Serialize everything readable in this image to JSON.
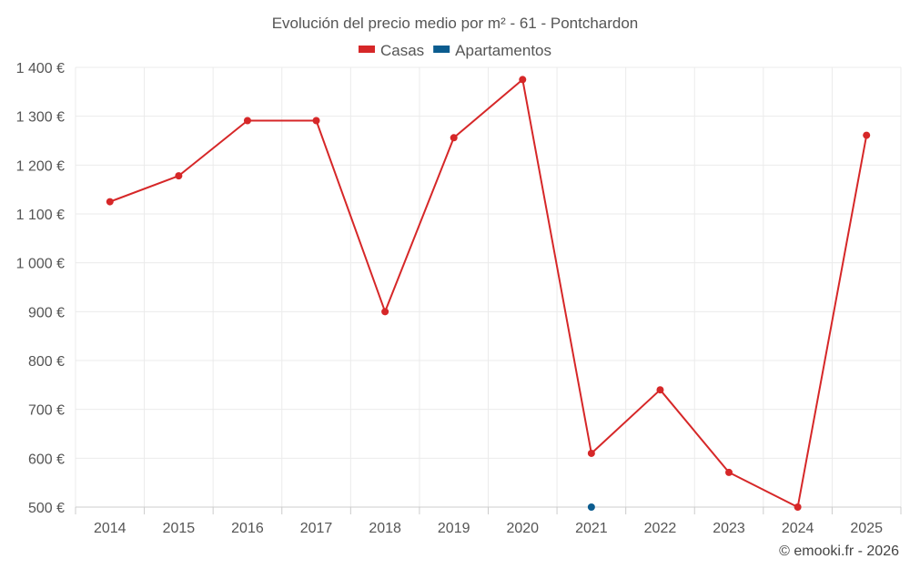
{
  "chart_data": {
    "type": "line",
    "title": "Evolución del precio medio por m² - 61 - Pontchardon",
    "x": [
      "2014",
      "2015",
      "2016",
      "2017",
      "2018",
      "2019",
      "2020",
      "2021",
      "2022",
      "2023",
      "2024",
      "2025"
    ],
    "y_ticks": [
      "500 €",
      "600 €",
      "700 €",
      "800 €",
      "900 €",
      "1 000 €",
      "1 100 €",
      "1 200 €",
      "1 300 €",
      "1 400 €"
    ],
    "ylim": [
      500,
      1400
    ],
    "grid": true,
    "legend_position": "top-center",
    "series": [
      {
        "name": "Casas",
        "color": "#d62728",
        "values": [
          1125,
          1178,
          1291,
          1291,
          900,
          1256,
          1375,
          610,
          740,
          571,
          500,
          1261
        ]
      },
      {
        "name": "Apartamentos",
        "color": "#0b5c8f",
        "values": [
          null,
          null,
          null,
          null,
          null,
          null,
          null,
          500,
          null,
          null,
          null,
          null
        ]
      }
    ],
    "credit": "© emooki.fr - 2026"
  }
}
